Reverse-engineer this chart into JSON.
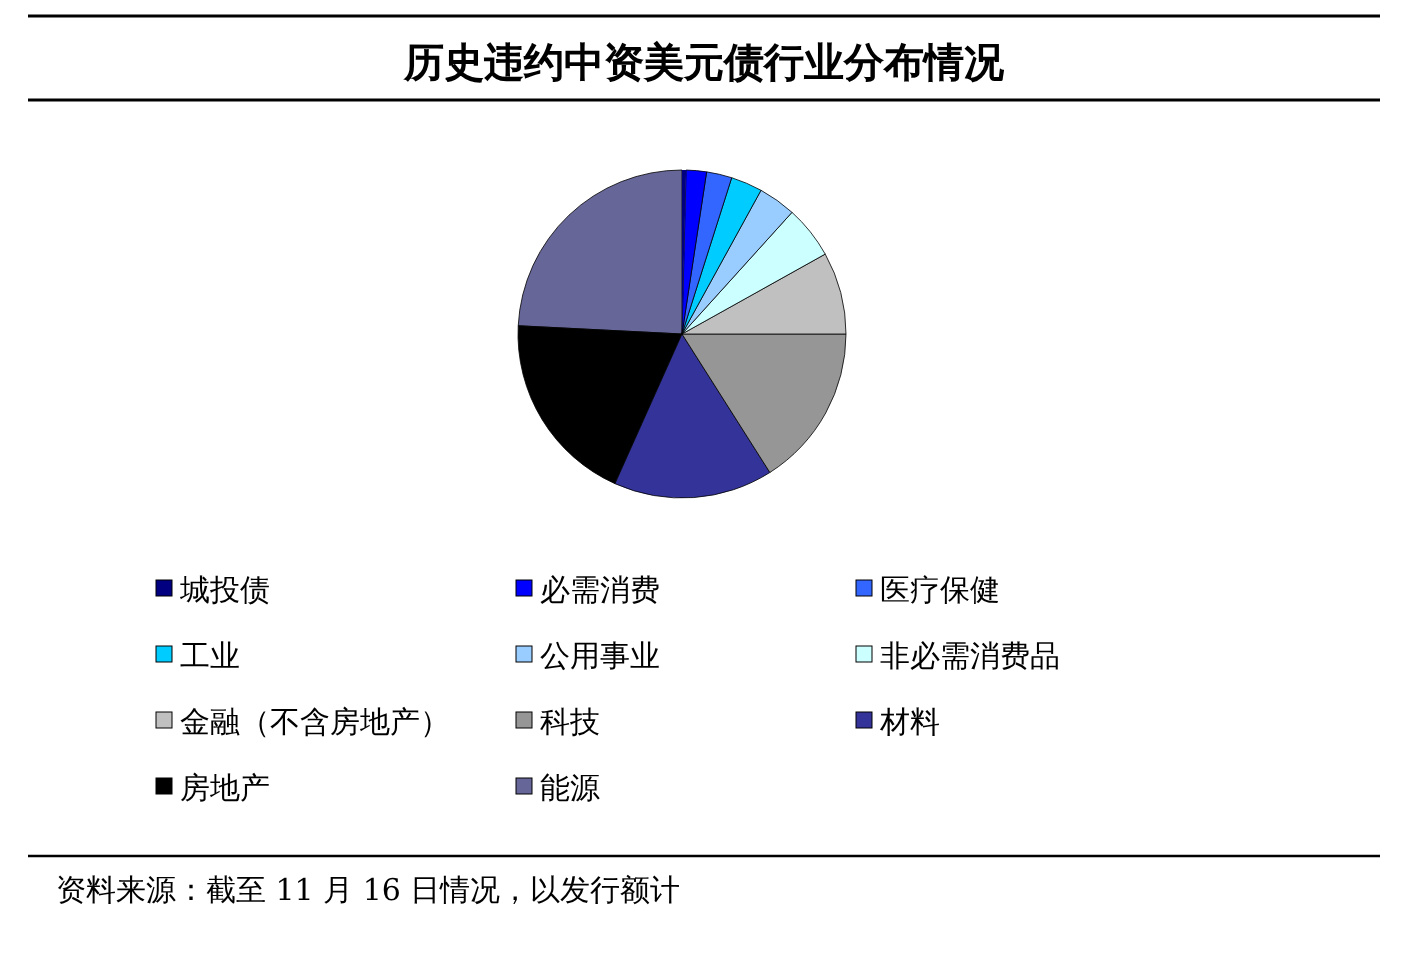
{
  "chart_data": {
    "type": "pie",
    "title": "历史违约中资美元债行业分布情况",
    "categories": [
      "城投债",
      "必需消费",
      "医疗保健",
      "工业",
      "公用事业",
      "非必需消费品",
      "金融（不含房地产）",
      "科技",
      "材料",
      "房地产",
      "能源"
    ],
    "values": [
      0.4,
      2.0,
      2.5,
      3.1,
      3.7,
      5.2,
      8.1,
      16.0,
      15.7,
      19.1,
      24.2
    ],
    "colors": [
      "#000080",
      "#0000ff",
      "#3366ff",
      "#00ccff",
      "#99ccff",
      "#ccffff",
      "#c0c0c0",
      "#969696",
      "#333399",
      "#000000",
      "#666699"
    ],
    "legend": "bottom",
    "annotations": [
      "资料来源：截至 11 月 16 日情况，以发行额计"
    ]
  }
}
